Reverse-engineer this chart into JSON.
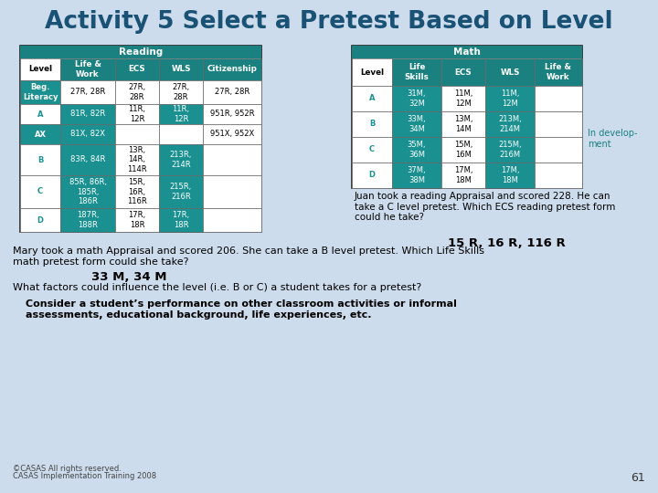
{
  "title": "Activity 5 Select a Pretest Based on Level",
  "title_color": "#1a5276",
  "bg_color": "#cddcec",
  "header_color": "#1a8080",
  "header_text_color": "#ffffff",
  "teal_cell": "#1a9090",
  "white_cell": "#ffffff",
  "reading_table": {
    "title": "Reading",
    "headers": [
      "Level",
      "Life &\nWork",
      "ECS",
      "WLS",
      "Citizenship"
    ],
    "rows": [
      [
        "Beg.\nLiteracy",
        "27R, 28R",
        "27R,\n28R",
        "27R,\n28R",
        "27R, 28R"
      ],
      [
        "A",
        "81R, 82R",
        "11R,\n12R",
        "11R,\n12R",
        "951R, 952R"
      ],
      [
        "AX",
        "81X, 82X",
        "",
        "",
        "951X, 952X"
      ],
      [
        "B",
        "83R, 84R",
        "13R,\n14R,\n114R",
        "213R,\n214R",
        ""
      ],
      [
        "C",
        "85R, 86R,\n185R,\n186R",
        "15R,\n16R,\n116R",
        "215R,\n216R",
        ""
      ],
      [
        "D",
        "187R,\n188R",
        "17R,\n18R",
        "17R,\n18R",
        ""
      ]
    ],
    "level_teal": [
      true,
      false,
      true,
      false,
      false,
      false
    ],
    "data_col_teal": [
      [
        false,
        false,
        false,
        false
      ],
      [
        true,
        false,
        true,
        false
      ],
      [
        true,
        false,
        false,
        false
      ],
      [
        true,
        false,
        true,
        false
      ],
      [
        true,
        false,
        true,
        false
      ],
      [
        true,
        false,
        true,
        false
      ]
    ]
  },
  "math_table": {
    "title": "Math",
    "headers": [
      "Level",
      "Life\nSkills",
      "ECS",
      "WLS",
      "Life &\nWork"
    ],
    "rows": [
      [
        "A",
        "31M,\n32M",
        "11M,\n12M",
        "11M,\n12M",
        ""
      ],
      [
        "B",
        "33M,\n34M",
        "13M,\n14M",
        "213M,\n214M",
        ""
      ],
      [
        "C",
        "35M,\n36M",
        "15M,\n16M",
        "215M,\n216M",
        ""
      ],
      [
        "D",
        "37M,\n38M",
        "17M,\n18M",
        "17M,\n18M",
        ""
      ]
    ],
    "level_teal": [
      false,
      false,
      false,
      false
    ],
    "data_col_teal": [
      [
        true,
        false,
        true,
        false
      ],
      [
        true,
        false,
        true,
        false
      ],
      [
        true,
        false,
        true,
        false
      ],
      [
        true,
        false,
        true,
        false
      ]
    ]
  },
  "in_development": "In develop-\nment",
  "question1": "Juan took a reading Appraisal and scored 228. He can\ntake a C level pretest. Which ECS reading pretest form\ncould he take?",
  "answer1": "15 R, 16 R, 116 R",
  "question2": "Mary took a math Appraisal and scored 206. She can take a B level pretest. Which Life Skills\nmath pretest form could she take?",
  "answer2": "33 M, 34 M",
  "question3": "What factors could influence the level (i.e. B or C) a student takes for a pretest?",
  "answer3": "Consider a student’s performance on other classroom activities or informal\nassessments, educational background, life experiences, etc.",
  "footer1": "©CASAS All rights reserved.",
  "footer2": "CASAS Implementation Training 2008",
  "page_num": "61"
}
